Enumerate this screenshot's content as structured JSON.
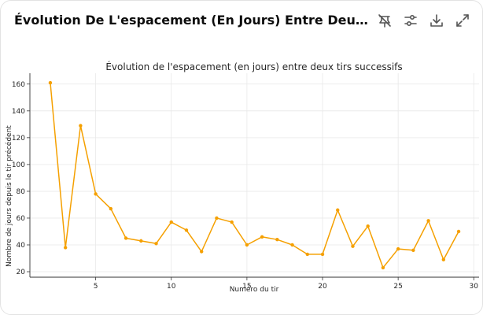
{
  "header": {
    "title": "Évolution De L'espacement (En Jours) Entre Deux Tirs Successifs",
    "icons": [
      "hide-interactivity-icon",
      "settings-sliders-icon",
      "download-icon",
      "expand-icon"
    ]
  },
  "colors": {
    "line": "#f5a000",
    "grid": "#e8e8e8",
    "text": "#262626"
  },
  "chart_data": {
    "type": "line",
    "title": "Évolution de l'espacement (en jours) entre deux tirs successifs",
    "xlabel": "Numéro du tir",
    "ylabel": "Nombre de jours depuis le tir précédent",
    "xlim": [
      0.65,
      30.35
    ],
    "ylim": [
      15.9,
      168.1
    ],
    "xticks": [
      5,
      10,
      15,
      20,
      25,
      30
    ],
    "yticks": [
      20,
      40,
      60,
      80,
      100,
      120,
      140,
      160
    ],
    "grid": true,
    "series": [
      {
        "x": [
          2,
          3,
          4,
          5,
          6,
          7,
          8,
          9,
          10,
          11,
          12,
          13,
          14,
          15,
          16,
          17,
          18,
          19,
          20,
          21,
          22,
          23,
          24,
          25,
          26,
          27,
          28,
          29
        ],
        "values": [
          161,
          38,
          129,
          78,
          67,
          45,
          43,
          41,
          57,
          51,
          35,
          60,
          57,
          40,
          46,
          44,
          40,
          33,
          33,
          66,
          39,
          54,
          23,
          37,
          36,
          58,
          29,
          50
        ]
      }
    ]
  }
}
